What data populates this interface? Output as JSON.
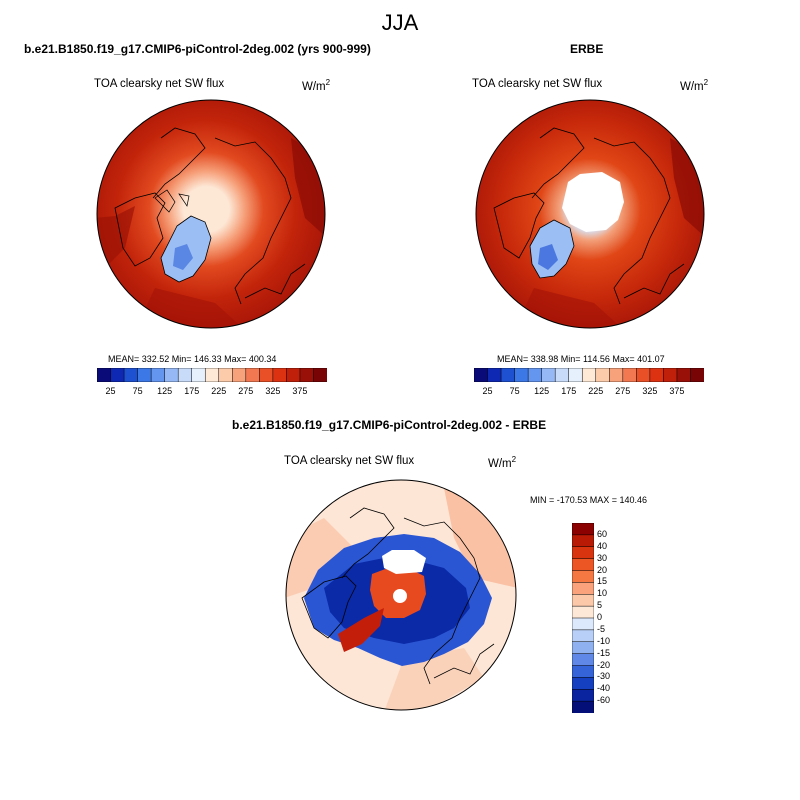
{
  "main_title": "JJA",
  "panels": [
    {
      "title": "b.e21.B1850.f19_g17.CMIP6-piControl-2deg.002 (yrs 900-999)",
      "field": "TOA clearsky net SW flux",
      "units_base": "W/m",
      "units_exp": "2",
      "stats": "MEAN= 332.52  Min= 146.33  Max= 400.34"
    },
    {
      "title": "ERBE",
      "field": "TOA clearsky net SW flux",
      "units_base": "W/m",
      "units_exp": "2",
      "stats": "MEAN= 338.98  Min= 114.56  Max= 401.07"
    },
    {
      "title": "b.e21.B1850.f19_g17.CMIP6-piControl-2deg.002 - ERBE",
      "field": "TOA clearsky net SW flux",
      "units_base": "W/m",
      "units_exp": "2",
      "stats": "MIN = -170.53 MAX = 140.46"
    }
  ],
  "colorbar_abs": {
    "ticks": [
      "25",
      "75",
      "125",
      "175",
      "225",
      "275",
      "325",
      "375"
    ],
    "colors": [
      "#0a0a78",
      "#0f28b4",
      "#1e50d2",
      "#3c78e6",
      "#6496f0",
      "#96b9f5",
      "#c8dcfa",
      "#e6f0fc",
      "#fde9d6",
      "#fbcbaa",
      "#f8a27c",
      "#f27852",
      "#ea5028",
      "#dc3212",
      "#c0200a",
      "#981008",
      "#780405"
    ]
  },
  "colorbar_diff": {
    "labels": [
      "60",
      "40",
      "30",
      "20",
      "15",
      "10",
      "5",
      "0",
      "-5",
      "-10",
      "-15",
      "-20",
      "-30",
      "-40",
      "-60"
    ],
    "colors": [
      "#8b0000",
      "#b81a05",
      "#d8340f",
      "#ec5524",
      "#f57843",
      "#f9a27c",
      "#fcc8aa",
      "#fde8d8",
      "#dce8fb",
      "#b8d0f7",
      "#8fb1f0",
      "#6088e6",
      "#3563d8",
      "#1540c0",
      "#0a24a0",
      "#050f78"
    ]
  }
}
